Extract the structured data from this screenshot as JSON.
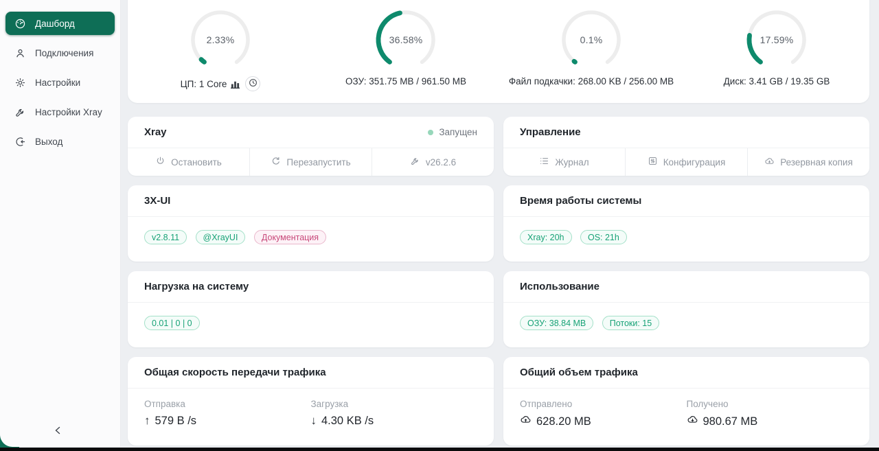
{
  "colors": {
    "accent_green": "#0e8a6c",
    "sidebar_active_bg": "#0e6e56",
    "gauge_track": "#ededed",
    "badge_green_text": "#17a276",
    "badge_pink_text": "#c8487a",
    "status_dot": "#97d7ba"
  },
  "sidebar": {
    "items": [
      {
        "label": "Дашборд",
        "icon": "dashboard-icon",
        "active": true
      },
      {
        "label": "Подключения",
        "icon": "user-icon",
        "active": false
      },
      {
        "label": "Настройки",
        "icon": "gear-icon",
        "active": false
      },
      {
        "label": "Настройки Xray",
        "icon": "wrench-icon",
        "active": false
      },
      {
        "label": "Выход",
        "icon": "logout-icon",
        "active": false
      }
    ]
  },
  "gauges": [
    {
      "percent": 2.33,
      "display": "2.33%",
      "label": "ЦП: 1 Core"
    },
    {
      "percent": 36.58,
      "display": "36.58%",
      "label": "ОЗУ: 351.75 MB / 961.50 MB"
    },
    {
      "percent": 0.1,
      "display": "0.1%",
      "label": "Файл подкачки: 268.00 KB / 256.00 MB"
    },
    {
      "percent": 17.59,
      "display": "17.59%",
      "label": "Диск: 3.41 GB / 19.35 GB"
    }
  ],
  "xray_card": {
    "title": "Xray",
    "status": "Запущен",
    "actions": [
      {
        "label": "Остановить",
        "icon": "power-icon"
      },
      {
        "label": "Перезапустить",
        "icon": "restart-icon"
      },
      {
        "label": "v26.2.6",
        "icon": "wrench-icon"
      }
    ]
  },
  "manage_card": {
    "title": "Управление",
    "actions": [
      {
        "label": "Журнал",
        "icon": "journal-icon"
      },
      {
        "label": "Конфигурация",
        "icon": "config-icon"
      },
      {
        "label": "Резервная копия",
        "icon": "cloud-backup-icon"
      }
    ]
  },
  "xui_card": {
    "title": "3X-UI",
    "badges": [
      {
        "text": "v2.8.11",
        "variant": "green"
      },
      {
        "text": "@XrayUI",
        "variant": "green"
      },
      {
        "text": "Документация",
        "variant": "pink"
      }
    ]
  },
  "uptime_card": {
    "title": "Время работы системы",
    "badges": [
      {
        "text": "Xray: 20h",
        "variant": "green"
      },
      {
        "text": "OS: 21h",
        "variant": "green"
      }
    ]
  },
  "load_card": {
    "title": "Нагрузка на систему",
    "badges": [
      {
        "text": "0.01 | 0 | 0",
        "variant": "green"
      }
    ]
  },
  "usage_card": {
    "title": "Использование",
    "badges": [
      {
        "text": "ОЗУ: 38.84 MB",
        "variant": "green"
      },
      {
        "text": "Потоки: 15",
        "variant": "green"
      }
    ]
  },
  "speed_card": {
    "title": "Общая скорость передачи трафика",
    "columns": [
      {
        "label": "Отправка",
        "value": "579 B /s",
        "direction": "up"
      },
      {
        "label": "Загрузка",
        "value": "4.30 KB /s",
        "direction": "down"
      }
    ]
  },
  "volume_card": {
    "title": "Общий объем трафика",
    "columns": [
      {
        "label": "Отправлено",
        "value": "628.20 MB",
        "direction": "up"
      },
      {
        "label": "Получено",
        "value": "980.67 MB",
        "direction": "down"
      }
    ]
  }
}
